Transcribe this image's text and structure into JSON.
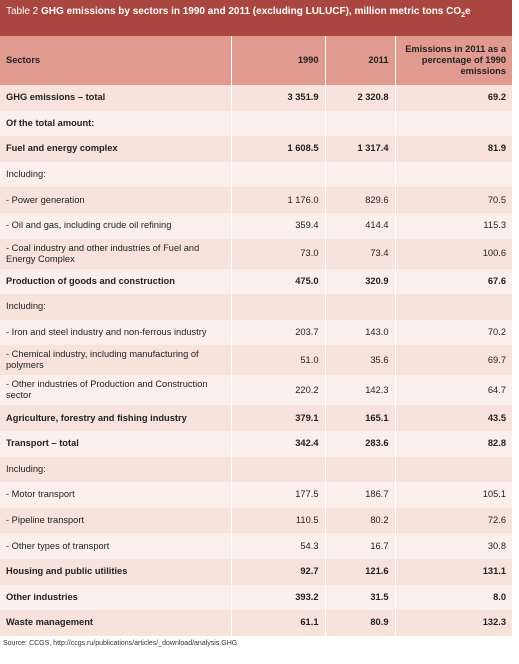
{
  "header": {
    "label": "Table 2",
    "title": "GHG emissions by sectors in 1990 and 2011 (excluding LULUCF), million metric tons CO",
    "subscript": "2",
    "suffix": "e"
  },
  "table": {
    "columns": [
      "Sectors",
      "1990",
      "2011",
      "Emissions in 2011 as a percentage of 1990 emissions"
    ],
    "rows": [
      {
        "bold": true,
        "cells": [
          "GHG emissions – total",
          "3 351.9",
          "2 320.8",
          "69.2"
        ]
      },
      {
        "bold": true,
        "cells": [
          "Of the total amount:"
        ]
      },
      {
        "bold": true,
        "cells": [
          "Fuel and energy complex",
          "1 608.5",
          "1 317.4",
          "81.9"
        ]
      },
      {
        "bold": false,
        "cells": [
          "Including:"
        ]
      },
      {
        "bold": false,
        "cells": [
          "- Power generation",
          "1 176.0",
          "829.6",
          "70.5"
        ]
      },
      {
        "bold": false,
        "cells": [
          "- Oil and gas, including crude oil refining",
          "359.4",
          "414.4",
          "115.3"
        ]
      },
      {
        "bold": false,
        "cells": [
          "- Coal industry and other industries of Fuel and Energy Complex",
          "73.0",
          "73.4",
          "100.6"
        ]
      },
      {
        "bold": true,
        "cells": [
          "Production of goods and construction",
          "475.0",
          "320.9",
          "67.6"
        ]
      },
      {
        "bold": false,
        "cells": [
          "Including:"
        ]
      },
      {
        "bold": false,
        "cells": [
          "- Iron and steel industry and non-ferrous industry",
          "203.7",
          "143.0",
          "70.2"
        ]
      },
      {
        "bold": false,
        "cells": [
          "- Chemical industry, including manufacturing of polymers",
          "51.0",
          "35.6",
          "69.7"
        ]
      },
      {
        "bold": false,
        "cells": [
          "- Other industries of Production and Construction sector",
          "220.2",
          "142.3",
          "64.7"
        ]
      },
      {
        "bold": true,
        "cells": [
          "Agriculture, forestry and fishing industry",
          "379.1",
          "165.1",
          "43.5"
        ]
      },
      {
        "bold": true,
        "cells": [
          "Transport – total",
          "342.4",
          "283.6",
          "82.8"
        ]
      },
      {
        "bold": false,
        "cells": [
          "Including:"
        ]
      },
      {
        "bold": false,
        "cells": [
          "- Motor transport",
          "177.5",
          "186.7",
          "105.1"
        ]
      },
      {
        "bold": false,
        "cells": [
          "- Pipeline transport",
          "110.5",
          "80.2",
          "72.6"
        ]
      },
      {
        "bold": false,
        "cells": [
          "- Other types of transport",
          "54.3",
          "16.7",
          "30.8"
        ]
      },
      {
        "bold": true,
        "cells": [
          "Housing and public utilities",
          "92.7",
          "121.6",
          "131.1"
        ]
      },
      {
        "bold": true,
        "cells": [
          "Other industries",
          "393.2",
          "31.5",
          "8.0"
        ]
      },
      {
        "bold": true,
        "cells": [
          "Waste management",
          "61.1",
          "80.9",
          "132.3"
        ]
      }
    ]
  },
  "source": "Source: CCGS, http://ccgs.ru/publications/articles/_download/analysis.GHG"
}
